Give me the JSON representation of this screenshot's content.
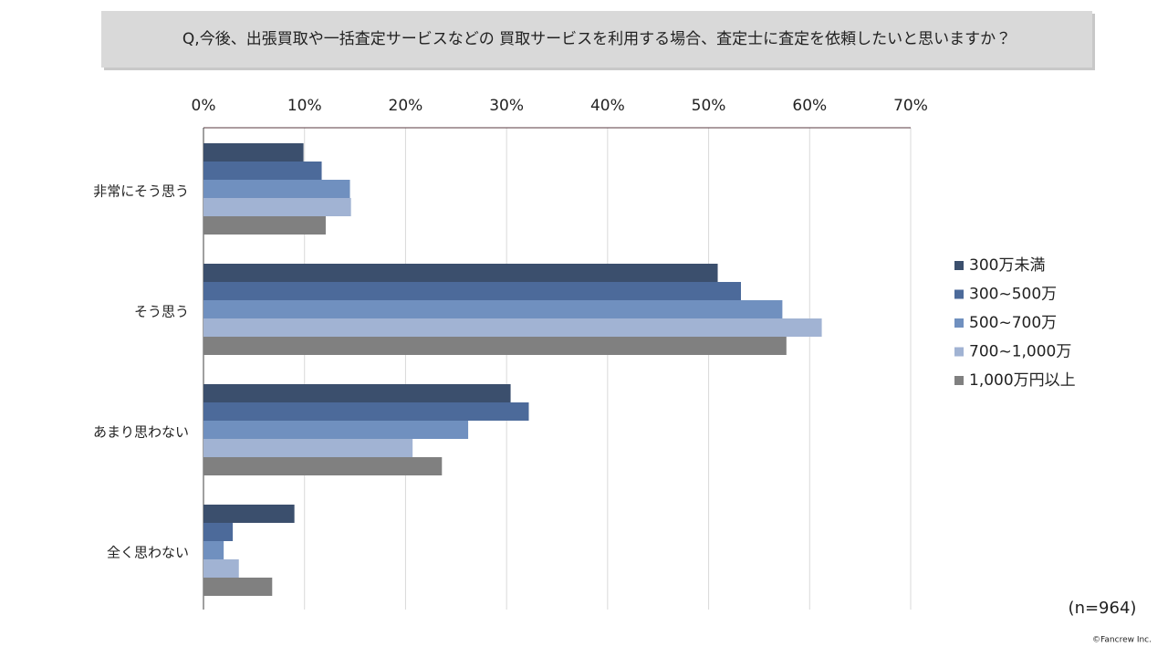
{
  "chart_data": {
    "type": "grouped-hbar",
    "title": "Q,今後、出張買取や一括査定サービスなどの 買取サービスを利用する場合、査定士に査定を依頼したいと思いますか？",
    "categories": [
      "非常にそう思う",
      "そう思う",
      "あまり思わない",
      "全く思わない"
    ],
    "series": [
      {
        "name": "300万未満",
        "color": "#3b4f6d",
        "values": [
          9.9,
          50.9,
          30.4,
          9.0
        ]
      },
      {
        "name": "300~500万",
        "color": "#4c6a9a",
        "values": [
          11.7,
          53.2,
          32.2,
          2.9
        ]
      },
      {
        "name": "500~700万",
        "color": "#7090bf",
        "values": [
          14.5,
          57.3,
          26.2,
          2.0
        ]
      },
      {
        "name": "700~1,000万",
        "color": "#a1b3d3",
        "values": [
          14.6,
          61.2,
          20.7,
          3.5
        ]
      },
      {
        "name": "1,000万円以上",
        "color": "#808080",
        "values": [
          12.1,
          57.7,
          23.6,
          6.8
        ]
      }
    ],
    "xlim": [
      0,
      70
    ],
    "xticks": [
      {
        "value": 0,
        "label": "0%"
      },
      {
        "value": 10,
        "label": "10%"
      },
      {
        "value": 20,
        "label": "20%"
      },
      {
        "value": 30,
        "label": "30%"
      },
      {
        "value": 40,
        "label": "40%"
      },
      {
        "value": 50,
        "label": "50%"
      },
      {
        "value": 60,
        "label": "60%"
      },
      {
        "value": 70,
        "label": "70%"
      }
    ],
    "grid": true,
    "legend_position": "right",
    "annotations": [
      "(n=964)",
      "©Fancrew Inc."
    ]
  }
}
